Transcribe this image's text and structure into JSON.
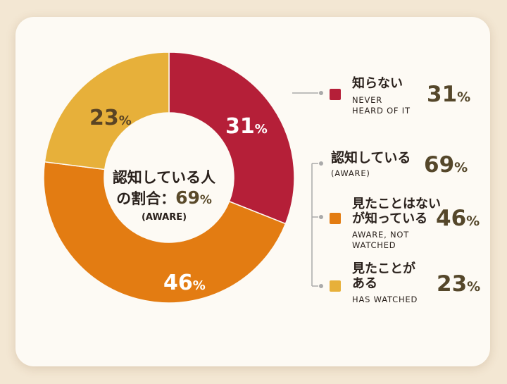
{
  "center": {
    "line1": "認知している人",
    "prefix": "の割合：",
    "value": "69",
    "pct": "%",
    "sub": "(AWARE)"
  },
  "slice_labels": {
    "aware": "31",
    "watched": "23",
    "not_watched": "46",
    "pct": "%"
  },
  "legend": {
    "never": {
      "title": "知らない",
      "sub1": "NEVER",
      "sub2": "HEARD OF IT",
      "value": "31",
      "pct": "%"
    },
    "aware": {
      "title": "認知している",
      "sub1": "(AWARE)",
      "value": "69",
      "pct": "%"
    },
    "not_watched": {
      "title1": "見たことはない",
      "title2": "が知っている",
      "sub1": "AWARE, NOT",
      "sub2": "WATCHED",
      "value": "46",
      "pct": "%"
    },
    "watched": {
      "title1": "見たことが",
      "title2": "ある",
      "sub1": "HAS WATCHED",
      "value": "23",
      "pct": "%"
    }
  },
  "colors": {
    "never": "#b51f38",
    "not_watched": "#e37c12",
    "watched": "#e7b03a",
    "connector": "#aaaaaa"
  },
  "chart_data": {
    "type": "pie",
    "donut": true,
    "categories": [
      "知らない",
      "見たことはないが知っている",
      "見たことがある"
    ],
    "values": [
      31,
      46,
      23
    ],
    "unit": "%",
    "center_label": "認知している人の割合：69% (AWARE)",
    "legend_placement": "right"
  }
}
